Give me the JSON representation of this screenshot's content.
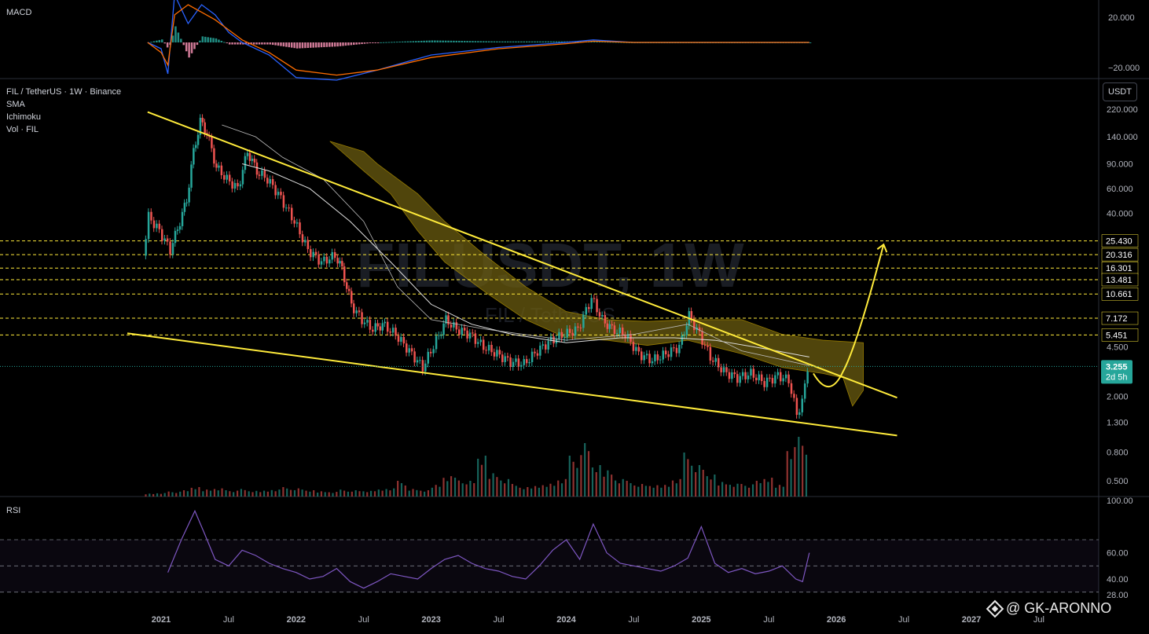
{
  "header": {
    "symbol_line": "FIL / TetherUS · 1W · Binance",
    "indicators": [
      "SMA",
      "Ichimoku",
      "Vol · FIL"
    ],
    "watermark_symbol": "FILUSDT, 1W",
    "watermark_sub": "FIL / TetherUS"
  },
  "unit_badge": "USDT",
  "author": "@ GK-ARONNO",
  "colors": {
    "up": "#26a69a",
    "down": "#ef5350",
    "trendline": "#ffeb3b",
    "cloud": "#6b5c10",
    "rsi": "#7e57c2",
    "macd": "#2962ff",
    "signal": "#ff6d00",
    "current_price_bg": "#26a69a"
  },
  "chart_data": [
    {
      "type": "line",
      "name_label": "MACD",
      "ylim": [
        -30,
        30
      ],
      "ticks": [
        "20.000",
        "−20.000"
      ],
      "tick_values": [
        20,
        -20
      ],
      "x_start": "2020-10",
      "x_end": "2025-10",
      "macd_x": [
        2020.9,
        2021.0,
        2021.05,
        2021.1,
        2021.2,
        2021.3,
        2021.4,
        2021.5,
        2021.6,
        2021.8,
        2022.0,
        2022.3,
        2022.6,
        2023.0,
        2023.5,
        2024.0,
        2024.2,
        2024.5,
        2025.0,
        2025.5,
        2025.8
      ],
      "macd_y": [
        0,
        -5,
        -25,
        38,
        15,
        30,
        22,
        8,
        0,
        -10,
        -28,
        -30,
        -22,
        -10,
        -4,
        0,
        2,
        0,
        0,
        0,
        0
      ],
      "signal_y": [
        0,
        -8,
        -18,
        22,
        30,
        24,
        18,
        10,
        2,
        -8,
        -22,
        -26,
        -22,
        -12,
        -5,
        -1,
        1,
        0,
        0,
        0,
        0
      ]
    },
    {
      "type": "candlestick",
      "scale": "log",
      "price_ticks": [
        "220.000",
        "140.000",
        "90.000",
        "60.000",
        "40.000",
        "4.500",
        "2.000",
        "1.300",
        "0.800",
        "0.500"
      ],
      "price_tick_values": [
        220,
        140,
        90,
        60,
        40,
        4.5,
        2.0,
        1.3,
        0.8,
        0.5
      ],
      "x_ticks": [
        "2021",
        "Jul",
        "2022",
        "Jul",
        "2023",
        "Jul",
        "2024",
        "Jul",
        "2025",
        "Jul",
        "2026",
        "Jul",
        "2027",
        "Jul"
      ],
      "x_tick_values": [
        2021.0,
        2021.5,
        2022.0,
        2022.5,
        2023.0,
        2023.5,
        2024.0,
        2024.5,
        2025.0,
        2025.5,
        2026.0,
        2026.5,
        2027.0,
        2027.5
      ],
      "levels": [
        {
          "label": "25.430",
          "value": 25.43
        },
        {
          "label": "20.316",
          "value": 20.316
        },
        {
          "label": "16.301",
          "value": 16.301
        },
        {
          "label": "13.481",
          "value": 13.481
        },
        {
          "label": "10.661",
          "value": 10.661
        },
        {
          "label": "7.172",
          "value": 7.172
        },
        {
          "label": "5.451",
          "value": 5.451
        }
      ],
      "current_price": "3.255",
      "countdown": "2d 5h",
      "current_value": 3.255,
      "series_close": [
        [
          2020.88,
          20
        ],
        [
          2020.92,
          38
        ],
        [
          2021.0,
          30
        ],
        [
          2021.08,
          22
        ],
        [
          2021.15,
          35
        ],
        [
          2021.2,
          50
        ],
        [
          2021.25,
          110
        ],
        [
          2021.3,
          180
        ],
        [
          2021.35,
          150
        ],
        [
          2021.42,
          85
        ],
        [
          2021.5,
          70
        ],
        [
          2021.58,
          60
        ],
        [
          2021.65,
          110
        ],
        [
          2021.72,
          80
        ],
        [
          2021.8,
          70
        ],
        [
          2021.88,
          55
        ],
        [
          2022.0,
          35
        ],
        [
          2022.1,
          22
        ],
        [
          2022.2,
          18
        ],
        [
          2022.3,
          20
        ],
        [
          2022.35,
          16
        ],
        [
          2022.42,
          9
        ],
        [
          2022.5,
          7
        ],
        [
          2022.58,
          6
        ],
        [
          2022.65,
          6.5
        ],
        [
          2022.75,
          5.5
        ],
        [
          2022.85,
          4.2
        ],
        [
          2022.95,
          3.2
        ],
        [
          2023.05,
          5.0
        ],
        [
          2023.12,
          7.0
        ],
        [
          2023.2,
          6.0
        ],
        [
          2023.3,
          5.5
        ],
        [
          2023.4,
          4.5
        ],
        [
          2023.5,
          4.0
        ],
        [
          2023.6,
          3.5
        ],
        [
          2023.7,
          3.4
        ],
        [
          2023.8,
          4.2
        ],
        [
          2023.9,
          5.0
        ],
        [
          2024.0,
          5.5
        ],
        [
          2024.1,
          6.0
        ],
        [
          2024.2,
          10.0
        ],
        [
          2024.28,
          7.0
        ],
        [
          2024.35,
          6.0
        ],
        [
          2024.45,
          5.5
        ],
        [
          2024.55,
          4.0
        ],
        [
          2024.65,
          3.6
        ],
        [
          2024.75,
          4.0
        ],
        [
          2024.85,
          4.5
        ],
        [
          2024.92,
          7.5
        ],
        [
          2025.0,
          5.5
        ],
        [
          2025.08,
          3.8
        ],
        [
          2025.18,
          3.0
        ],
        [
          2025.28,
          2.7
        ],
        [
          2025.38,
          2.9
        ],
        [
          2025.48,
          2.5
        ],
        [
          2025.58,
          2.8
        ],
        [
          2025.66,
          2.6
        ],
        [
          2025.72,
          1.5
        ],
        [
          2025.76,
          1.8
        ],
        [
          2025.8,
          3.255
        ]
      ],
      "volume_heights": [
        0.05,
        0.06,
        0.08,
        0.1,
        0.15,
        0.12,
        0.14,
        0.1,
        0.12,
        0.09,
        0.1,
        0.12,
        0.15,
        0.13,
        0.1,
        0.09,
        0.08,
        0.11,
        0.1,
        0.09,
        0.12,
        0.14,
        0.25,
        0.12,
        0.1,
        0.2,
        0.35,
        0.3,
        0.25,
        0.65,
        0.4,
        0.3,
        0.2,
        0.15,
        0.18,
        0.22,
        0.3,
        0.65,
        0.85,
        0.5,
        0.45,
        0.3,
        0.25,
        0.2,
        0.18,
        0.2,
        0.3,
        0.7,
        0.5,
        0.35,
        0.25,
        0.22,
        0.2,
        0.25,
        0.3,
        0.2,
        0.85,
        0.95
      ]
    },
    {
      "type": "line",
      "name_label": "RSI",
      "ylim": [
        28,
        100
      ],
      "ticks": [
        "100.00",
        "60.00",
        "40.00",
        "28.00"
      ],
      "tick_values": [
        100,
        60,
        40,
        28
      ],
      "x": [
        2021.05,
        2021.15,
        2021.25,
        2021.32,
        2021.4,
        2021.5,
        2021.6,
        2021.7,
        2021.8,
        2021.9,
        2022.0,
        2022.1,
        2022.2,
        2022.3,
        2022.4,
        2022.5,
        2022.6,
        2022.7,
        2022.8,
        2022.9,
        2023.0,
        2023.1,
        2023.2,
        2023.3,
        2023.4,
        2023.5,
        2023.6,
        2023.7,
        2023.8,
        2023.9,
        2024.0,
        2024.1,
        2024.2,
        2024.3,
        2024.4,
        2024.5,
        2024.6,
        2024.7,
        2024.8,
        2024.9,
        2025.0,
        2025.1,
        2025.2,
        2025.3,
        2025.4,
        2025.5,
        2025.6,
        2025.7,
        2025.75,
        2025.8
      ],
      "y": [
        45,
        70,
        92,
        75,
        55,
        50,
        62,
        58,
        52,
        48,
        45,
        40,
        42,
        48,
        38,
        33,
        38,
        44,
        42,
        40,
        48,
        55,
        58,
        52,
        48,
        46,
        42,
        40,
        50,
        62,
        70,
        55,
        82,
        60,
        52,
        50,
        48,
        46,
        50,
        56,
        80,
        52,
        45,
        48,
        44,
        46,
        50,
        40,
        38,
        60
      ]
    }
  ]
}
